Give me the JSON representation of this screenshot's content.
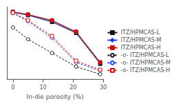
{
  "chart_data": {
    "type": "line",
    "xlabel": "In-die porosity (%)",
    "x": [
      0,
      5,
      13,
      21,
      29
    ],
    "xlim": [
      -2,
      30
    ],
    "xticks": [
      0,
      10,
      20,
      30
    ],
    "ylim": [
      0,
      1.05
    ],
    "tick_labels": "x",
    "grid": false,
    "legend": "right",
    "series": [
      {
        "name": "ITZ/HPMCAS-L",
        "color": "#111111",
        "marker": "square",
        "line_style": "solid",
        "values": [
          0.97,
          0.93,
          0.83,
          0.67,
          0.22
        ]
      },
      {
        "name": "ITZ/HPMCAS-M",
        "color": "#2244dd",
        "marker": "diamond",
        "line_style": "solid",
        "values": [
          0.975,
          0.935,
          0.845,
          0.68,
          0.235
        ]
      },
      {
        "name": "ITZ/HPMCAS-H",
        "color": "#cc1111",
        "marker": "square",
        "line_style": "solid",
        "values": [
          0.98,
          0.94,
          0.855,
          0.69,
          0.245
        ]
      },
      {
        "name": "-o- ITZ/HPMCAS-L",
        "color": "#111111",
        "marker": "circle",
        "line_style": "dashed",
        "values": [
          0.75,
          0.58,
          0.38,
          0.18,
          0.07
        ]
      },
      {
        "name": "-o- ITZ/HPMCAS-M",
        "color": "#2244dd",
        "marker": "circle",
        "line_style": "dashed",
        "values": [
          0.96,
          0.84,
          0.6,
          0.24,
          0.12
        ]
      },
      {
        "name": "-o- ITZ/HPMCAS-H",
        "color": "#cc1111",
        "marker": "square",
        "line_style": "dashed",
        "values": [
          0.965,
          0.855,
          0.625,
          0.265,
          0.135
        ]
      }
    ]
  }
}
